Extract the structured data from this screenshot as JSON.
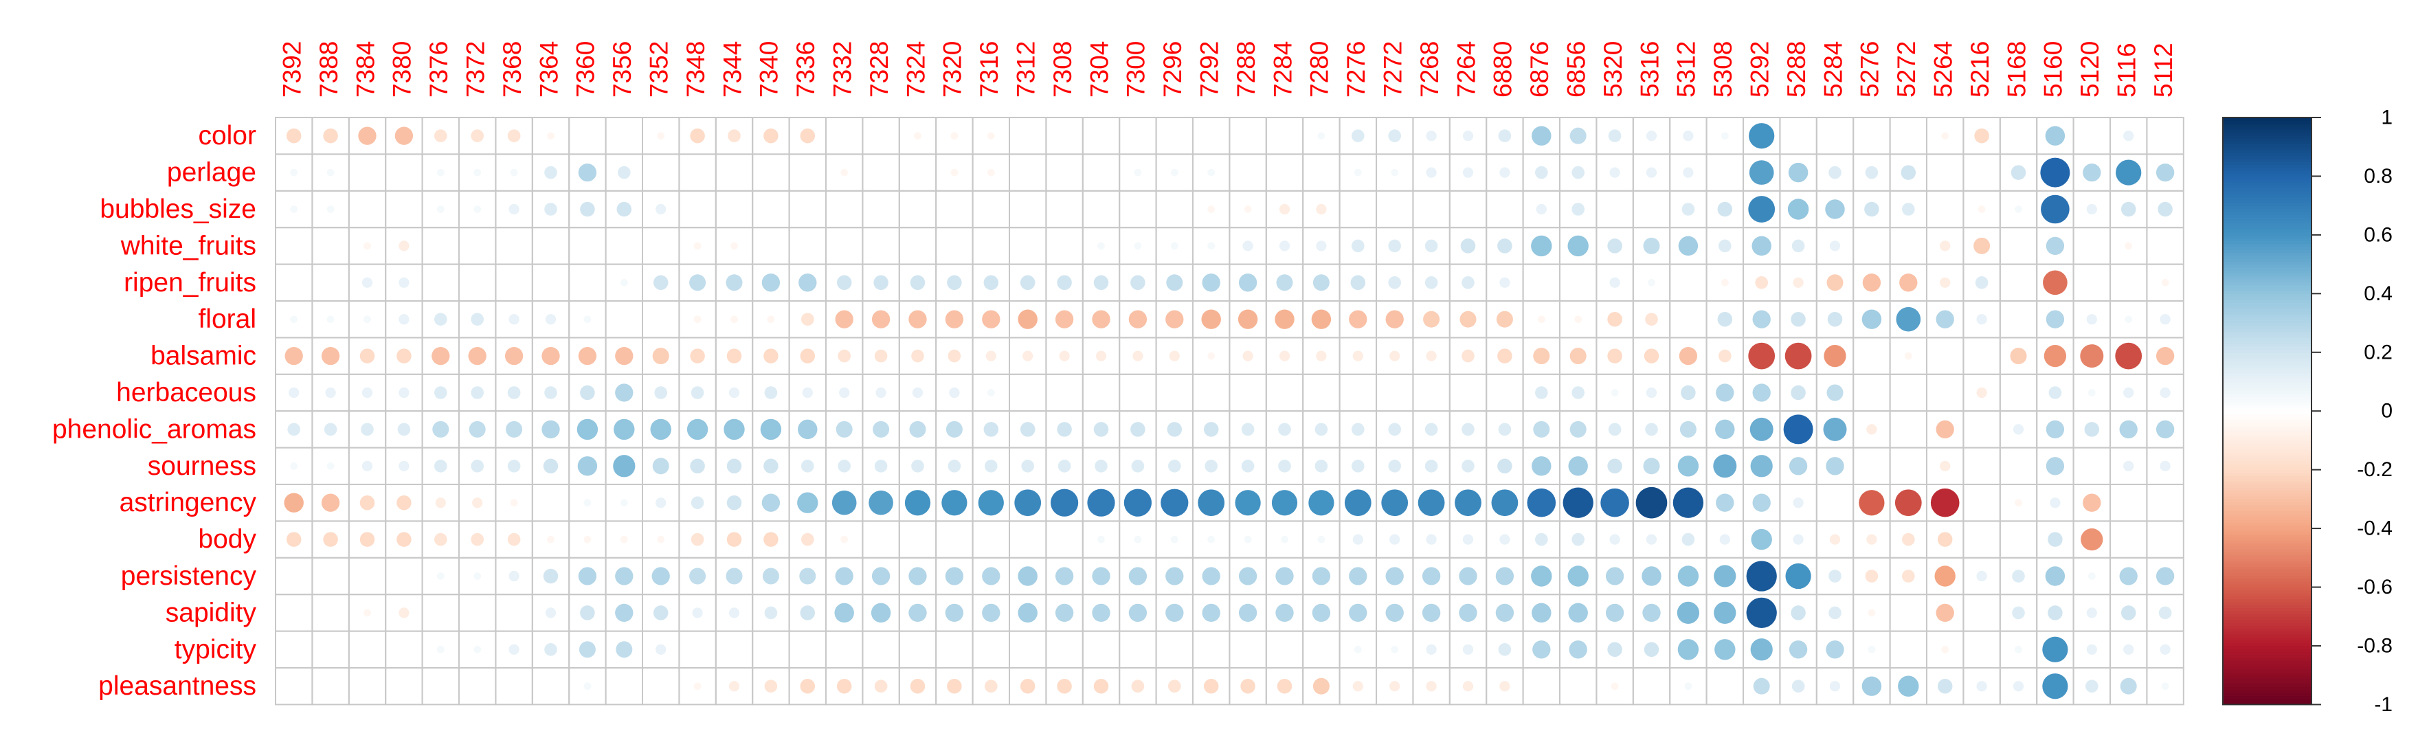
{
  "chart_data": {
    "type": "corrplot",
    "columns": [
      "7392",
      "7388",
      "7384",
      "7380",
      "7376",
      "7372",
      "7368",
      "7364",
      "7360",
      "7356",
      "7352",
      "7348",
      "7344",
      "7340",
      "7336",
      "7332",
      "7328",
      "7324",
      "7320",
      "7316",
      "7312",
      "7308",
      "7304",
      "7300",
      "7296",
      "7292",
      "7288",
      "7284",
      "7280",
      "7276",
      "7272",
      "7268",
      "7264",
      "6880",
      "6876",
      "6856",
      "5320",
      "5316",
      "5312",
      "5308",
      "5292",
      "5288",
      "5284",
      "5276",
      "5272",
      "5264",
      "5216",
      "5168",
      "5160",
      "5120",
      "5116",
      "5112"
    ],
    "rows": [
      "color",
      "perlage",
      "bubbles_size",
      "white_fruits",
      "ripen_fruits",
      "floral",
      "balsamic",
      "herbaceous",
      "phenolic_aromas",
      "sourness",
      "astringency",
      "body",
      "persistency",
      "sapidity",
      "typicity",
      "pleasantness"
    ],
    "values": [
      [
        -0.2,
        -0.2,
        -0.3,
        -0.3,
        -0.15,
        -0.15,
        -0.15,
        -0.05,
        0,
        0,
        -0.05,
        -0.2,
        -0.15,
        -0.2,
        -0.2,
        0,
        0,
        -0.05,
        -0.05,
        -0.05,
        0,
        0,
        0,
        0,
        0,
        0,
        0,
        0,
        0.05,
        0.15,
        0.15,
        0.1,
        0.1,
        0.15,
        0.35,
        0.25,
        0.15,
        0.1,
        0.1,
        0.05,
        0.6,
        0,
        0,
        0,
        0,
        -0.05,
        -0.2,
        0,
        0.35,
        0,
        0.1,
        0
      ],
      [
        0.05,
        0.05,
        0,
        0,
        0.05,
        0.05,
        0.05,
        0.15,
        0.3,
        0.15,
        0,
        0,
        0,
        0,
        0,
        -0.05,
        0,
        0,
        -0.05,
        -0.05,
        0,
        0,
        0,
        0.05,
        0.05,
        0.05,
        0,
        0,
        0,
        0.05,
        0.05,
        0.1,
        0.1,
        0.1,
        0.15,
        0.15,
        0.1,
        0.1,
        0.1,
        0,
        0.55,
        0.35,
        0.15,
        0.15,
        0.2,
        0,
        0,
        0.2,
        0.8,
        0.3,
        0.6,
        0.3
      ],
      [
        0.05,
        0.05,
        0,
        0,
        0.05,
        0.05,
        0.1,
        0.15,
        0.2,
        0.2,
        0.1,
        0,
        0,
        0,
        0,
        0,
        0,
        0,
        0,
        0,
        0,
        0,
        0,
        0,
        0,
        -0.05,
        -0.05,
        -0.1,
        -0.1,
        0,
        0,
        0,
        0,
        0,
        0.1,
        0.15,
        0,
        0,
        0.15,
        0.2,
        0.65,
        0.4,
        0.35,
        0.2,
        0.15,
        0,
        -0.05,
        0.05,
        0.75,
        0.1,
        0.2,
        0.2
      ],
      [
        0,
        0,
        -0.05,
        -0.1,
        0,
        0,
        0,
        0,
        0,
        0,
        0,
        -0.05,
        -0.05,
        0,
        0,
        0,
        0,
        0,
        0,
        0,
        0,
        0,
        0.05,
        0.05,
        0.05,
        0.05,
        0.1,
        0.1,
        0.1,
        0.15,
        0.15,
        0.15,
        0.2,
        0.2,
        0.4,
        0.4,
        0.2,
        0.25,
        0.35,
        0.15,
        0.35,
        0.15,
        0.1,
        0,
        0,
        -0.1,
        -0.25,
        0,
        0.3,
        0,
        -0.05,
        0
      ],
      [
        0,
        0,
        0.1,
        0.1,
        0,
        0,
        0,
        0,
        0,
        0.05,
        0.2,
        0.25,
        0.25,
        0.3,
        0.3,
        0.2,
        0.2,
        0.2,
        0.2,
        0.2,
        0.2,
        0.2,
        0.2,
        0.2,
        0.25,
        0.3,
        0.3,
        0.25,
        0.25,
        0.2,
        0.15,
        0.15,
        0.15,
        0.1,
        0,
        0,
        0.1,
        0.05,
        0,
        -0.05,
        -0.15,
        -0.1,
        -0.25,
        -0.3,
        -0.3,
        -0.1,
        0.15,
        0,
        -0.55,
        0,
        0,
        -0.05
      ],
      [
        0.05,
        0.05,
        0.05,
        0.1,
        0.15,
        0.15,
        0.1,
        0.1,
        0.05,
        0,
        0,
        -0.05,
        -0.05,
        -0.05,
        -0.15,
        -0.3,
        -0.3,
        -0.3,
        -0.3,
        -0.3,
        -0.35,
        -0.3,
        -0.3,
        -0.3,
        -0.3,
        -0.35,
        -0.35,
        -0.35,
        -0.35,
        -0.3,
        -0.3,
        -0.25,
        -0.25,
        -0.25,
        -0.05,
        -0.05,
        -0.2,
        -0.15,
        0,
        0.2,
        0.3,
        0.2,
        0.2,
        0.35,
        0.55,
        0.3,
        0.1,
        0,
        0.3,
        0.1,
        0.05,
        0.1
      ],
      [
        -0.3,
        -0.3,
        -0.2,
        -0.2,
        -0.3,
        -0.3,
        -0.3,
        -0.3,
        -0.3,
        -0.3,
        -0.25,
        -0.2,
        -0.2,
        -0.2,
        -0.2,
        -0.15,
        -0.15,
        -0.15,
        -0.15,
        -0.1,
        -0.1,
        -0.1,
        -0.1,
        -0.1,
        -0.1,
        -0.05,
        -0.1,
        -0.1,
        -0.1,
        -0.1,
        -0.1,
        -0.1,
        -0.15,
        -0.2,
        -0.25,
        -0.25,
        -0.2,
        -0.2,
        -0.3,
        -0.15,
        -0.65,
        -0.65,
        -0.45,
        0,
        -0.05,
        0,
        0,
        -0.25,
        -0.45,
        -0.5,
        -0.65,
        -0.3
      ],
      [
        0.1,
        0.1,
        0.1,
        0.1,
        0.15,
        0.15,
        0.15,
        0.15,
        0.2,
        0.3,
        0.15,
        0.15,
        0.1,
        0.15,
        0.1,
        0.1,
        0.1,
        0.1,
        0.1,
        0.05,
        0,
        0,
        0,
        0,
        0,
        0,
        0,
        0,
        0,
        0,
        0,
        0,
        0,
        0,
        0.15,
        0.15,
        0.05,
        0.1,
        0.2,
        0.3,
        0.3,
        0.2,
        0.25,
        0,
        0,
        0,
        -0.1,
        0,
        0.15,
        0.05,
        0.1,
        0.1
      ],
      [
        0.15,
        0.15,
        0.15,
        0.15,
        0.25,
        0.25,
        0.25,
        0.3,
        0.4,
        0.4,
        0.4,
        0.4,
        0.4,
        0.4,
        0.35,
        0.25,
        0.25,
        0.25,
        0.25,
        0.2,
        0.2,
        0.2,
        0.2,
        0.2,
        0.2,
        0.2,
        0.15,
        0.15,
        0.15,
        0.15,
        0.15,
        0.15,
        0.15,
        0.15,
        0.25,
        0.25,
        0.15,
        0.15,
        0.25,
        0.35,
        0.5,
        0.8,
        0.5,
        -0.1,
        0,
        -0.3,
        0,
        0.1,
        0.3,
        0.2,
        0.3,
        0.3
      ],
      [
        0.05,
        0.05,
        0.1,
        0.1,
        0.15,
        0.15,
        0.15,
        0.2,
        0.35,
        0.45,
        0.25,
        0.2,
        0.2,
        0.2,
        0.15,
        0.15,
        0.15,
        0.15,
        0.15,
        0.15,
        0.15,
        0.15,
        0.15,
        0.15,
        0.15,
        0.15,
        0.15,
        0.15,
        0.15,
        0.15,
        0.15,
        0.15,
        0.15,
        0.2,
        0.35,
        0.35,
        0.2,
        0.25,
        0.4,
        0.5,
        0.45,
        0.3,
        0.3,
        0,
        0,
        -0.1,
        0,
        0,
        0.3,
        0,
        0.1,
        0.1
      ],
      [
        -0.35,
        -0.3,
        -0.2,
        -0.2,
        -0.1,
        -0.1,
        -0.05,
        0,
        0.05,
        0.05,
        0.1,
        0.15,
        0.2,
        0.3,
        0.4,
        0.55,
        0.55,
        0.6,
        0.6,
        0.6,
        0.65,
        0.7,
        0.7,
        0.7,
        0.7,
        0.65,
        0.6,
        0.6,
        0.6,
        0.65,
        0.65,
        0.65,
        0.65,
        0.65,
        0.75,
        0.85,
        0.75,
        0.9,
        0.85,
        0.3,
        0.3,
        0.1,
        0,
        -0.6,
        -0.65,
        -0.75,
        0,
        -0.05,
        0.1,
        -0.3,
        0,
        0
      ],
      [
        -0.2,
        -0.2,
        -0.2,
        -0.2,
        -0.15,
        -0.15,
        -0.15,
        -0.05,
        -0.05,
        -0.05,
        -0.05,
        -0.15,
        -0.2,
        -0.2,
        -0.15,
        -0.05,
        0,
        0,
        0,
        0,
        0,
        0,
        0.05,
        0.05,
        0.05,
        0.05,
        0.05,
        0.05,
        0.05,
        0.1,
        0.1,
        0.1,
        0.1,
        0.1,
        0.15,
        0.15,
        0.1,
        0.1,
        0.15,
        0.1,
        0.4,
        0.1,
        -0.1,
        -0.1,
        -0.15,
        -0.2,
        0,
        0,
        0.2,
        -0.45,
        0,
        0
      ],
      [
        0,
        0,
        0,
        0,
        0.05,
        0.05,
        0.1,
        0.2,
        0.3,
        0.3,
        0.3,
        0.25,
        0.25,
        0.25,
        0.25,
        0.3,
        0.3,
        0.3,
        0.3,
        0.3,
        0.35,
        0.3,
        0.3,
        0.3,
        0.3,
        0.3,
        0.3,
        0.3,
        0.3,
        0.3,
        0.3,
        0.3,
        0.3,
        0.3,
        0.4,
        0.4,
        0.3,
        0.35,
        0.4,
        0.45,
        0.85,
        0.6,
        0.15,
        -0.15,
        -0.15,
        -0.4,
        0.1,
        0.15,
        0.35,
        0.05,
        0.3,
        0.3
      ],
      [
        0,
        0,
        -0.05,
        -0.1,
        0,
        0,
        0,
        0.1,
        0.2,
        0.3,
        0.2,
        0.1,
        0.1,
        0.15,
        0.2,
        0.35,
        0.35,
        0.3,
        0.3,
        0.3,
        0.35,
        0.3,
        0.3,
        0.3,
        0.3,
        0.3,
        0.3,
        0.3,
        0.3,
        0.3,
        0.3,
        0.3,
        0.3,
        0.3,
        0.35,
        0.35,
        0.3,
        0.3,
        0.45,
        0.45,
        0.85,
        0.2,
        0.15,
        -0.05,
        0,
        -0.3,
        0,
        0.15,
        0.2,
        0.1,
        0.2,
        0.15
      ],
      [
        0,
        0,
        0,
        0,
        0.05,
        0.05,
        0.1,
        0.15,
        0.25,
        0.25,
        0.1,
        0,
        0,
        0,
        0,
        0,
        0,
        0,
        0,
        0,
        0,
        0,
        0,
        0,
        0,
        0,
        0,
        0,
        0,
        0.05,
        0.05,
        0.1,
        0.1,
        0.15,
        0.3,
        0.3,
        0.2,
        0.2,
        0.4,
        0.4,
        0.45,
        0.3,
        0.3,
        0.05,
        0,
        -0.05,
        0,
        0.05,
        0.6,
        0.1,
        0.1,
        0.1
      ],
      [
        0,
        0,
        0,
        0,
        0,
        0,
        0,
        0,
        0.05,
        0,
        0,
        -0.05,
        -0.1,
        -0.15,
        -0.2,
        -0.2,
        -0.15,
        -0.2,
        -0.2,
        -0.15,
        -0.2,
        -0.2,
        -0.2,
        -0.15,
        -0.15,
        -0.2,
        -0.2,
        -0.2,
        -0.25,
        -0.1,
        -0.1,
        -0.1,
        -0.1,
        -0.1,
        0,
        0,
        -0.05,
        0,
        0.05,
        0,
        0.25,
        0.15,
        0.1,
        0.35,
        0.4,
        0.2,
        0.1,
        0.1,
        0.6,
        0.15,
        0.25,
        0.05
      ]
    ],
    "clim": [
      -1,
      1
    ],
    "cticks": [
      -1,
      -0.8,
      -0.6,
      -0.4,
      -0.2,
      0,
      0.2,
      0.4,
      0.6,
      0.8,
      1
    ],
    "colormap": [
      "#67001F",
      "#B2182B",
      "#D6604D",
      "#F4A582",
      "#FDDBC7",
      "#FFFFFF",
      "#D1E5F0",
      "#92C5DE",
      "#4393C3",
      "#2166AC",
      "#053061"
    ],
    "label_color": "#ff0000"
  }
}
